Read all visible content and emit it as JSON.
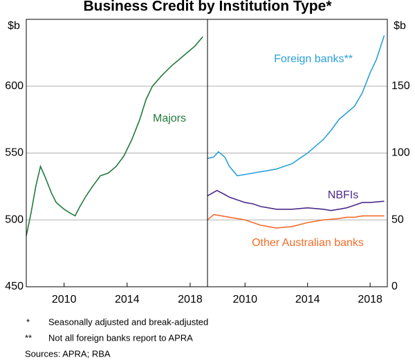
{
  "title": "Business Credit by Institution Type*",
  "chart_data": [
    {
      "type": "line",
      "y_label": "$b",
      "xlim": [
        2007.6,
        2019.1
      ],
      "xticks": [
        2010,
        2014,
        2018
      ],
      "ylim": [
        450,
        650
      ],
      "yticks": [
        450,
        500,
        550,
        600
      ],
      "grid": true,
      "series": [
        {
          "name": "Majors",
          "color": "#217a3c",
          "x": [
            2007.6,
            2007.9,
            2008.2,
            2008.5,
            2008.8,
            2009.2,
            2009.5,
            2010.0,
            2010.4,
            2010.7,
            2011.0,
            2011.4,
            2011.8,
            2012.3,
            2012.8,
            2013.3,
            2013.8,
            2014.3,
            2014.8,
            2015.2,
            2015.6,
            2016.2,
            2016.8,
            2017.3,
            2017.8,
            2018.3,
            2018.8
          ],
          "values": [
            488,
            505,
            525,
            540,
            532,
            520,
            513,
            508,
            505,
            503,
            510,
            518,
            525,
            533,
            535,
            540,
            548,
            560,
            575,
            590,
            600,
            608,
            615,
            620,
            625,
            630,
            637
          ]
        }
      ]
    },
    {
      "type": "line",
      "y_label": "$b",
      "xlim": [
        2007.6,
        2019.1
      ],
      "xticks": [
        2010,
        2014,
        2018
      ],
      "ylim": [
        0,
        200
      ],
      "yticks": [
        0,
        50,
        100,
        150
      ],
      "grid": true,
      "series": [
        {
          "name": "Foreign banks**",
          "color": "#2aa0d8",
          "x": [
            2007.6,
            2008.0,
            2008.3,
            2008.7,
            2009.0,
            2009.5,
            2010.0,
            2010.5,
            2011.0,
            2011.5,
            2012.0,
            2012.5,
            2013.0,
            2013.5,
            2014.0,
            2014.5,
            2015.0,
            2015.5,
            2016.0,
            2016.5,
            2017.0,
            2017.5,
            2018.0,
            2018.4,
            2018.9
          ],
          "values": [
            96,
            97,
            101,
            97,
            90,
            83,
            84,
            85,
            86,
            87,
            88,
            90,
            92,
            96,
            100,
            105,
            110,
            117,
            125,
            130,
            135,
            145,
            160,
            170,
            188
          ]
        },
        {
          "name": "NBFIs",
          "color": "#4b2a8a",
          "x": [
            2007.6,
            2008.2,
            2008.7,
            2009.0,
            2009.5,
            2010.0,
            2010.5,
            2011.0,
            2012.0,
            2013.0,
            2014.0,
            2015.0,
            2015.5,
            2016.0,
            2016.5,
            2017.0,
            2017.5,
            2018.0,
            2018.9
          ],
          "values": [
            68,
            72,
            69,
            67,
            65,
            63,
            62,
            60,
            58,
            58,
            59,
            58,
            57,
            58,
            59,
            61,
            63,
            63,
            64
          ]
        },
        {
          "name": "Other Australian banks",
          "color": "#f26c2a",
          "x": [
            2007.6,
            2008.0,
            2008.5,
            2009.0,
            2009.5,
            2010.0,
            2010.5,
            2011.0,
            2011.5,
            2012.0,
            2013.0,
            2014.0,
            2015.0,
            2016.0,
            2016.5,
            2017.0,
            2017.5,
            2018.0,
            2018.9
          ],
          "values": [
            50,
            54,
            53,
            52,
            51,
            50,
            48,
            46,
            45,
            44,
            45,
            48,
            50,
            51,
            52,
            52,
            53,
            53,
            53
          ]
        }
      ]
    }
  ],
  "notes": [
    {
      "marker": "*",
      "text": "Seasonally adjusted and break-adjusted"
    },
    {
      "marker": "**",
      "text": "Not all foreign banks report to APRA"
    }
  ],
  "sources": "Sources: APRA; RBA"
}
